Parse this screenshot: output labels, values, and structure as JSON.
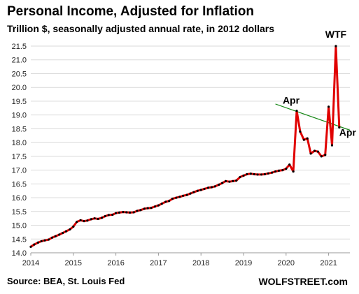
{
  "chart_data": {
    "type": "line",
    "title": "Personal Income, Adjusted for Inflation",
    "subtitle": "Trillion $, seasonally adjusted annual rate, in 2012 dollars",
    "ylim": [
      14.0,
      21.5
    ],
    "ytick_labels": [
      "14.0",
      "14.5",
      "15.0",
      "15.5",
      "16.0",
      "16.5",
      "17.0",
      "17.5",
      "18.0",
      "18.5",
      "19.0",
      "19.5",
      "20.0",
      "20.5",
      "21.0",
      "21.5"
    ],
    "yticks": [
      14.0,
      14.5,
      15.0,
      15.5,
      16.0,
      16.5,
      17.0,
      17.5,
      18.0,
      18.5,
      19.0,
      19.5,
      20.0,
      20.5,
      21.0,
      21.5
    ],
    "xlim": [
      2014.0,
      2021.5
    ],
    "xtick_labels": [
      "2014",
      "2015",
      "2016",
      "2017",
      "2018",
      "2019",
      "2020",
      "2021"
    ],
    "xticks": [
      2014,
      2015,
      2016,
      2017,
      2018,
      2019,
      2020,
      2021
    ],
    "grid": "horizontal",
    "series": [
      {
        "color": "#e00000",
        "marker_color": "#000000",
        "x": [
          2014.0,
          2014.08,
          2014.17,
          2014.25,
          2014.33,
          2014.42,
          2014.5,
          2014.58,
          2014.67,
          2014.75,
          2014.83,
          2014.92,
          2015.0,
          2015.08,
          2015.17,
          2015.25,
          2015.33,
          2015.42,
          2015.5,
          2015.58,
          2015.67,
          2015.75,
          2015.83,
          2015.92,
          2016.0,
          2016.08,
          2016.17,
          2016.25,
          2016.33,
          2016.42,
          2016.5,
          2016.58,
          2016.67,
          2016.75,
          2016.83,
          2016.92,
          2017.0,
          2017.08,
          2017.17,
          2017.25,
          2017.33,
          2017.42,
          2017.5,
          2017.58,
          2017.67,
          2017.75,
          2017.83,
          2017.92,
          2018.0,
          2018.08,
          2018.17,
          2018.25,
          2018.33,
          2018.42,
          2018.5,
          2018.58,
          2018.67,
          2018.75,
          2018.83,
          2018.92,
          2019.0,
          2019.08,
          2019.17,
          2019.25,
          2019.33,
          2019.42,
          2019.5,
          2019.58,
          2019.67,
          2019.75,
          2019.83,
          2019.92,
          2020.0,
          2020.08,
          2020.17,
          2020.25,
          2020.33,
          2020.42,
          2020.5,
          2020.58,
          2020.67,
          2020.75,
          2020.83,
          2020.92,
          2021.0,
          2021.08,
          2021.17,
          2021.25
        ],
        "values": [
          14.22,
          14.3,
          14.37,
          14.42,
          14.45,
          14.48,
          14.55,
          14.6,
          14.66,
          14.72,
          14.78,
          14.85,
          14.95,
          15.12,
          15.18,
          15.15,
          15.17,
          15.22,
          15.25,
          15.23,
          15.27,
          15.33,
          15.37,
          15.38,
          15.44,
          15.46,
          15.48,
          15.47,
          15.46,
          15.47,
          15.52,
          15.55,
          15.6,
          15.62,
          15.63,
          15.68,
          15.72,
          15.78,
          15.85,
          15.88,
          15.96,
          16.0,
          16.03,
          16.07,
          16.1,
          16.15,
          16.2,
          16.25,
          16.28,
          16.32,
          16.36,
          16.38,
          16.41,
          16.47,
          16.53,
          16.6,
          16.58,
          16.6,
          16.62,
          16.75,
          16.8,
          16.85,
          16.87,
          16.85,
          16.84,
          16.84,
          16.85,
          16.88,
          16.91,
          16.95,
          16.98,
          17.0,
          17.05,
          17.2,
          16.95,
          19.15,
          18.4,
          18.1,
          18.15,
          17.6,
          17.7,
          17.67,
          17.5,
          17.55,
          19.3,
          17.9,
          21.5,
          18.55
        ]
      }
    ],
    "trendline": {
      "color": "#1a8a1a",
      "x": [
        2019.75,
        2021.5
      ],
      "values": [
        19.4,
        18.45
      ]
    },
    "annotations": [
      {
        "text": "Apr",
        "x": 2020.25,
        "y": 19.15
      },
      {
        "text": "WTF",
        "x": 2021.17,
        "y": 21.5
      },
      {
        "text": "Apr",
        "x": 2021.25,
        "y": 18.55
      }
    ],
    "source": "Source: BEA, St. Louis Fed",
    "brand": "WOLFSTREET.com"
  }
}
